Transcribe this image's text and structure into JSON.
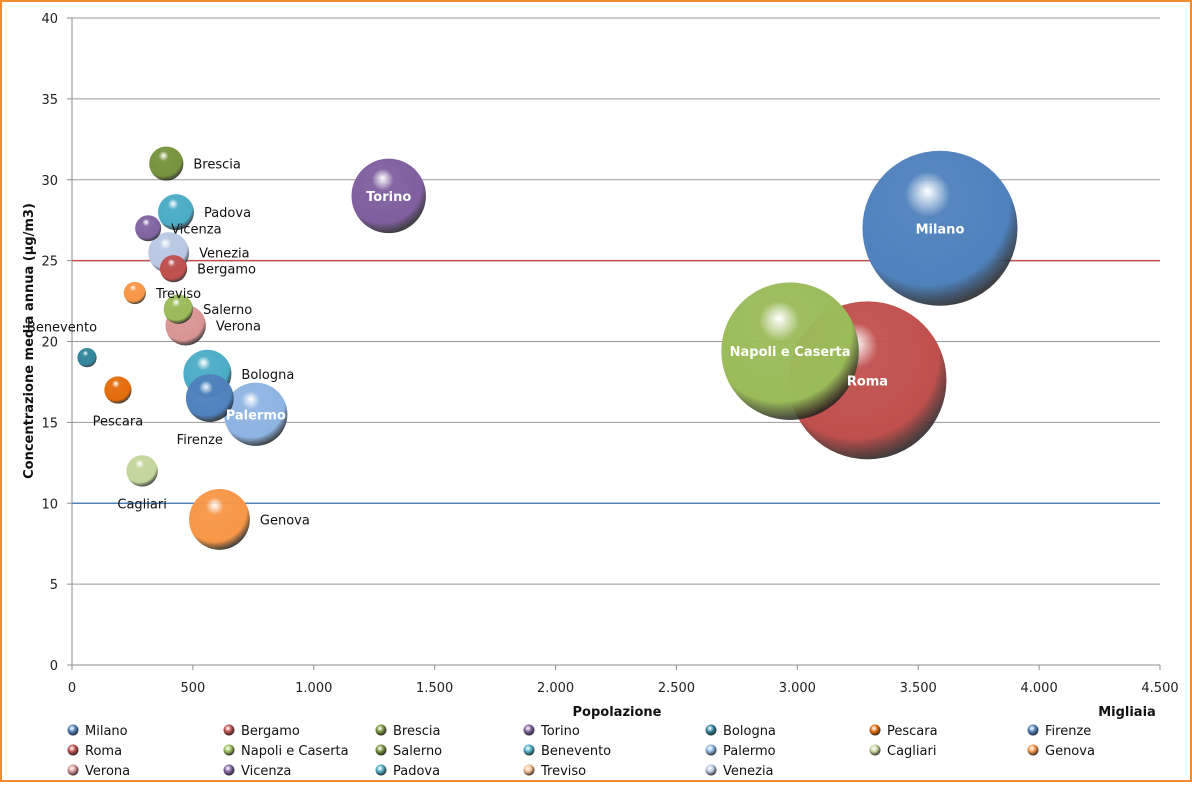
{
  "chart_data": {
    "type": "bubble",
    "xlabel": "Popolazione",
    "x_unit_label": "Migliaia",
    "ylabel": "Concentrazione media annua (µg/m3)",
    "xlim": [
      0,
      4500
    ],
    "ylim": [
      0,
      40
    ],
    "x_ticks": [
      "0",
      "500",
      "1.000",
      "1.500",
      "2.000",
      "2.500",
      "3.000",
      "3.500",
      "4.000",
      "4.500"
    ],
    "y_ticks": [
      "0",
      "5",
      "10",
      "15",
      "20",
      "25",
      "30",
      "35",
      "40"
    ],
    "grid": true,
    "reference_lines": [
      {
        "y": 25,
        "color": "#c0504d"
      },
      {
        "y": 10,
        "color": "#4f81bd"
      }
    ],
    "legend_position": "bottom",
    "points": [
      {
        "name": "Brescia",
        "x": 390,
        "y": 31,
        "size": 190,
        "color": "#77933c",
        "label_pos": "right"
      },
      {
        "name": "Torino",
        "x": 1310,
        "y": 29,
        "size": 900,
        "color": "#7f5f9f",
        "label_pos": "inside"
      },
      {
        "name": "Padova",
        "x": 430,
        "y": 28,
        "size": 210,
        "color": "#4bacc6",
        "label_pos": "right"
      },
      {
        "name": "Vicenza",
        "x": 315,
        "y": 27,
        "size": 110,
        "color": "#8064a2",
        "label_pos": "right"
      },
      {
        "name": "Venezia",
        "x": 400,
        "y": 25.5,
        "size": 270,
        "color": "#b9c7e3",
        "label_pos": "right"
      },
      {
        "name": "Bergamo",
        "x": 420,
        "y": 24.5,
        "size": 120,
        "color": "#c0504d",
        "label_pos": "right"
      },
      {
        "name": "Treviso",
        "x": 260,
        "y": 23,
        "size": 80,
        "color": "#f79646",
        "label_pos": "right"
      },
      {
        "name": "Salerno",
        "x": 440,
        "y": 22,
        "size": 140,
        "color": "#9bbb59",
        "label_pos": "right"
      },
      {
        "name": "Verona",
        "x": 470,
        "y": 21,
        "size": 265,
        "color": "#d99594",
        "label_pos": "right"
      },
      {
        "name": "Benevento",
        "x": 62,
        "y": 19,
        "size": 60,
        "color": "#31859c",
        "label_pos": "above-left"
      },
      {
        "name": "Bologna",
        "x": 560,
        "y": 18,
        "size": 375,
        "color": "#4bacc6",
        "label_pos": "right"
      },
      {
        "name": "Pescara",
        "x": 190,
        "y": 17,
        "size": 120,
        "color": "#e46c0a",
        "label_pos": "below"
      },
      {
        "name": "Firenze",
        "x": 570,
        "y": 16.5,
        "size": 370,
        "color": "#4f81bd",
        "label_pos": "below-left"
      },
      {
        "name": "Palermo",
        "x": 760,
        "y": 15.5,
        "size": 650,
        "color": "#8eb4e3",
        "label_pos": "inside"
      },
      {
        "name": "Cagliari",
        "x": 290,
        "y": 12,
        "size": 160,
        "color": "#c3d69b",
        "label_pos": "below"
      },
      {
        "name": "Genova",
        "x": 610,
        "y": 9,
        "size": 600,
        "color": "#f79646",
        "label_pos": "right"
      },
      {
        "name": "Milano",
        "x": 3590,
        "y": 27,
        "size": 3900,
        "color": "#4f81bd",
        "label_pos": "inside"
      },
      {
        "name": "Roma",
        "x": 3290,
        "y": 17.6,
        "size": 4050,
        "color": "#c0504d",
        "label_pos": "inside"
      },
      {
        "name": "Napoli e Caserta",
        "x": 2970,
        "y": 19.4,
        "size": 3070,
        "color": "#9bbb59",
        "label_pos": "inside"
      }
    ],
    "legend": [
      {
        "name": "Milano",
        "color": "#4f81bd"
      },
      {
        "name": "Bergamo",
        "color": "#c0504d"
      },
      {
        "name": "Brescia",
        "color": "#77933c"
      },
      {
        "name": "Torino",
        "color": "#7f5f9f"
      },
      {
        "name": "Bologna",
        "color": "#31859c"
      },
      {
        "name": "Pescara",
        "color": "#e46c0a"
      },
      {
        "name": "Firenze",
        "color": "#4f81bd"
      },
      {
        "name": "Roma",
        "color": "#c0504d"
      },
      {
        "name": "Napoli e Caserta",
        "color": "#9bbb59"
      },
      {
        "name": "Salerno",
        "color": "#77933c"
      },
      {
        "name": "Benevento",
        "color": "#4bacc6"
      },
      {
        "name": "Palermo",
        "color": "#8eb4e3"
      },
      {
        "name": "Cagliari",
        "color": "#c3d69b"
      },
      {
        "name": "Genova",
        "color": "#f79646"
      },
      {
        "name": "Verona",
        "color": "#d99594"
      },
      {
        "name": "Vicenza",
        "color": "#8064a2"
      },
      {
        "name": "Padova",
        "color": "#4bacc6"
      },
      {
        "name": "Treviso",
        "color": "#fac090"
      },
      {
        "name": "Venezia",
        "color": "#b9c7e3"
      }
    ]
  }
}
